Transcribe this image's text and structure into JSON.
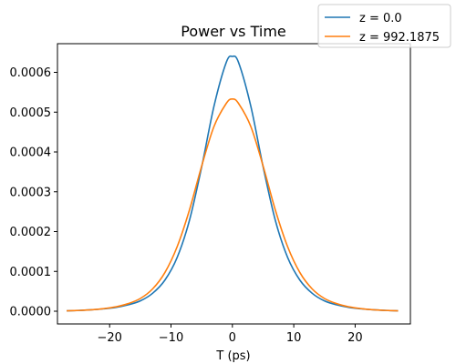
{
  "chart_data": {
    "type": "line",
    "title": "Power vs Time",
    "xlabel": "T (ps)",
    "ylabel": "",
    "xlim": [
      -28.5,
      29.0
    ],
    "ylim": [
      -3.2e-05,
      0.000672
    ],
    "xticks": [
      -20,
      -10,
      0,
      10,
      20
    ],
    "xtick_labels": [
      "−20",
      "−10",
      "0",
      "10",
      "20"
    ],
    "yticks": [
      0.0,
      0.0001,
      0.0002,
      0.0003,
      0.0004,
      0.0005,
      0.0006
    ],
    "ytick_labels": [
      "0.0000",
      "0.0001",
      "0.0002",
      "0.0003",
      "0.0004",
      "0.0005",
      "0.0006"
    ],
    "grid": false,
    "legend_position": "top-right",
    "series": [
      {
        "name": "z = 0.0",
        "color": "#1f77b4",
        "x": [
          -27,
          -25,
          -23,
          -21,
          -19,
          -17,
          -15,
          -13,
          -11,
          -9,
          -7,
          -5,
          -3,
          -1,
          0,
          1,
          3,
          5,
          7,
          9,
          11,
          13,
          15,
          17,
          19,
          21,
          23,
          25,
          27
        ],
        "y": [
          1e-06,
          2e-06,
          3.5e-06,
          6e-06,
          9.5e-06,
          1.6e-05,
          2.6e-05,
          4.5e-05,
          7.8e-05,
          0.000135,
          0.000228,
          0.000363,
          0.000515,
          0.000625,
          0.00064,
          0.000625,
          0.000515,
          0.000363,
          0.000228,
          0.000135,
          7.8e-05,
          4.5e-05,
          2.6e-05,
          1.6e-05,
          9.5e-06,
          6e-06,
          3.5e-06,
          2e-06,
          1e-06
        ]
      },
      {
        "name": "z = 992.1875",
        "color": "#ff7f0e",
        "x": [
          -27,
          -25,
          -23,
          -21,
          -19,
          -17,
          -15,
          -13,
          -11,
          -9,
          -7,
          -5,
          -3,
          -1,
          0,
          1,
          3,
          5,
          7,
          9,
          11,
          13,
          15,
          17,
          19,
          21,
          23,
          25,
          27
        ],
        "y": [
          1e-06,
          2e-06,
          3.5e-06,
          6.5e-06,
          1.1e-05,
          1.9e-05,
          3.2e-05,
          5.6e-05,
          9.7e-05,
          0.000162,
          0.000254,
          0.000365,
          0.000464,
          0.000522,
          0.000533,
          0.000522,
          0.000464,
          0.000365,
          0.000254,
          0.000162,
          9.7e-05,
          5.6e-05,
          3.2e-05,
          1.9e-05,
          1.1e-05,
          6.5e-06,
          3.5e-06,
          2e-06,
          1e-06
        ]
      }
    ]
  }
}
